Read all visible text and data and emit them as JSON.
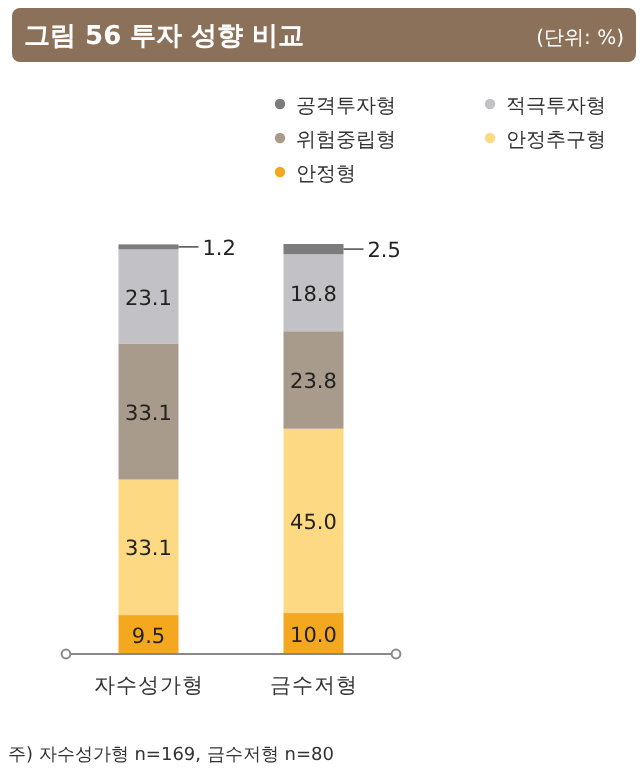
{
  "chart_data": {
    "type": "bar",
    "stacked": true,
    "title": "그림 56  투자 성향 비교",
    "annotations": [
      "(단위: %)",
      "주) 자수성가형 n=169, 금수저형 n=80"
    ],
    "categories": [
      "자수성가형",
      "금수저형"
    ],
    "legend": "top right",
    "series": [
      {
        "name": "안정형",
        "color": "#f4a81f",
        "values": [
          9.5,
          10.0
        ],
        "value_labels": [
          "9.5",
          "10.0"
        ]
      },
      {
        "name": "안정추구형",
        "color": "#fdd983",
        "values": [
          33.1,
          45.0
        ],
        "value_labels": [
          "33.1",
          "45.0"
        ]
      },
      {
        "name": "위험중립형",
        "color": "#a99b8b",
        "values": [
          33.1,
          23.8
        ],
        "value_labels": [
          "33.1",
          "23.8"
        ]
      },
      {
        "name": "적극투자형",
        "color": "#c2c2c6",
        "values": [
          23.1,
          18.8
        ],
        "value_labels": [
          "23.1",
          "18.8"
        ]
      },
      {
        "name": "공격투자형",
        "color": "#7c7b7d",
        "values": [
          1.2,
          2.5
        ],
        "value_labels": [
          "1.2",
          "2.5"
        ]
      }
    ]
  }
}
